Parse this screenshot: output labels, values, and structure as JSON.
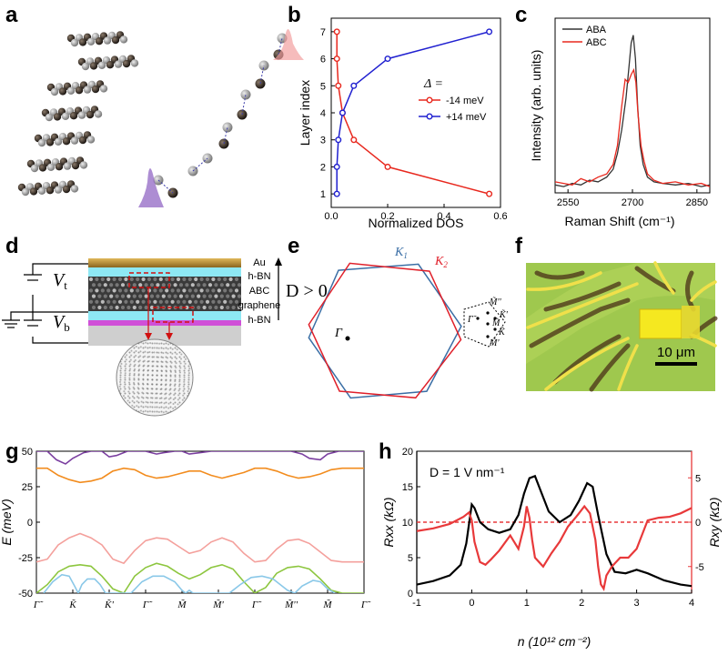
{
  "panels": {
    "a": "a",
    "b": "b",
    "c": "c",
    "d": "d",
    "e": "e",
    "f": "f",
    "g": "g",
    "h": "h"
  },
  "chart_data": [
    {
      "id": "b",
      "type": "line",
      "xlabel": "Normalized DOS",
      "ylabel": "Layer index",
      "legend_title": "Δ =",
      "xlim": [
        0,
        0.6
      ],
      "ylim": [
        0.5,
        7.5
      ],
      "xticks": [
        "0.0",
        "0.2",
        "0.4",
        "0.6"
      ],
      "yticks": [
        "1",
        "2",
        "3",
        "4",
        "5",
        "6",
        "7"
      ],
      "series": [
        {
          "name": "-14 meV",
          "color": "#e8281e",
          "x": [
            0.56,
            0.2,
            0.08,
            0.04,
            0.025,
            0.02,
            0.02
          ],
          "y": [
            1,
            2,
            3,
            4,
            5,
            6,
            7
          ]
        },
        {
          "name": "+14 meV",
          "color": "#2020d0",
          "x": [
            0.02,
            0.02,
            0.025,
            0.04,
            0.08,
            0.2,
            0.56
          ],
          "y": [
            1,
            2,
            3,
            4,
            5,
            6,
            7
          ]
        }
      ]
    },
    {
      "id": "c",
      "type": "line",
      "xlabel": "Raman Shift (cm⁻¹)",
      "ylabel": "Intensity (arb. units)",
      "xlim": [
        2520,
        2880
      ],
      "ylim": [
        0,
        1.05
      ],
      "xticks": [
        "2550",
        "2700",
        "2850"
      ],
      "series": [
        {
          "name": "ABA",
          "color": "#333333",
          "x": [
            2520,
            2540,
            2560,
            2580,
            2600,
            2620,
            2640,
            2655,
            2665,
            2675,
            2685,
            2692,
            2697,
            2702,
            2707,
            2712,
            2718,
            2725,
            2735,
            2750,
            2770,
            2800,
            2830,
            2860,
            2880
          ],
          "y": [
            0.05,
            0.04,
            0.06,
            0.05,
            0.08,
            0.07,
            0.1,
            0.15,
            0.25,
            0.4,
            0.6,
            0.8,
            0.95,
            1.0,
            0.85,
            0.55,
            0.3,
            0.18,
            0.1,
            0.07,
            0.06,
            0.05,
            0.06,
            0.04,
            0.05
          ]
        },
        {
          "name": "ABC",
          "color": "#e8281e",
          "x": [
            2520,
            2540,
            2560,
            2580,
            2600,
            2620,
            2640,
            2655,
            2665,
            2675,
            2683,
            2690,
            2697,
            2703,
            2708,
            2713,
            2720,
            2727,
            2735,
            2750,
            2770,
            2800,
            2830,
            2860,
            2880
          ],
          "y": [
            0.07,
            0.06,
            0.05,
            0.09,
            0.07,
            0.1,
            0.12,
            0.18,
            0.3,
            0.55,
            0.72,
            0.7,
            0.75,
            0.78,
            0.7,
            0.5,
            0.3,
            0.2,
            0.12,
            0.08,
            0.06,
            0.07,
            0.05,
            0.06,
            0.04
          ]
        }
      ]
    },
    {
      "id": "g",
      "type": "line",
      "ylabel": "E (meV)",
      "ylim": [
        -50,
        50
      ],
      "yticks": [
        "-50",
        "-25",
        "0",
        "25",
        "50"
      ],
      "xticks": [
        "Γ̃",
        "K̃",
        "K̃'",
        "Γ̃",
        "M̃",
        "M̃'",
        "Γ̃",
        "M̃''",
        "M̃",
        "Γ̃"
      ],
      "series": [
        {
          "name": "band+2",
          "color": "#7b3fa0",
          "x": [
            0,
            0.3,
            0.55,
            0.8,
            1,
            1.3,
            1.5,
            1.8,
            2,
            2.2,
            2.5,
            2.8,
            3,
            3.3,
            3.5,
            3.8,
            4,
            4.2,
            4.5,
            4.8,
            5,
            5.3,
            5.5,
            5.8,
            6,
            6.2,
            6.5,
            6.8,
            7,
            7.3,
            7.5,
            7.8,
            8,
            8.3,
            8.6,
            8.9,
            9
          ],
          "y": [
            50,
            50,
            44,
            41,
            45,
            49,
            50,
            50,
            46,
            47,
            50,
            50,
            50,
            48,
            49,
            50,
            50,
            48,
            49,
            50,
            50,
            50,
            50,
            50,
            50,
            50,
            50,
            50,
            50,
            48,
            45,
            44,
            48,
            50,
            50,
            50,
            50
          ]
        },
        {
          "name": "band+1",
          "color": "#f28c1e",
          "x": [
            0,
            0.3,
            0.6,
            0.9,
            1.2,
            1.5,
            1.8,
            2.1,
            2.4,
            2.7,
            3,
            3.3,
            3.6,
            3.9,
            4.2,
            4.5,
            4.8,
            5.1,
            5.4,
            5.7,
            6,
            6.3,
            6.6,
            6.9,
            7.2,
            7.5,
            7.8,
            8.1,
            8.4,
            8.7,
            9
          ],
          "y": [
            38,
            38,
            33,
            30,
            28,
            29,
            31,
            36,
            38,
            37,
            33,
            31,
            32,
            34,
            36,
            36,
            33,
            31,
            33,
            35,
            38,
            38,
            36,
            33,
            31,
            32,
            34,
            37,
            38,
            38,
            38
          ]
        },
        {
          "name": "band-1",
          "color": "#f4a09c",
          "x": [
            0,
            0.3,
            0.6,
            0.9,
            1.2,
            1.5,
            1.8,
            2.1,
            2.4,
            2.7,
            3,
            3.3,
            3.6,
            3.9,
            4.2,
            4.5,
            4.8,
            5.1,
            5.4,
            5.7,
            6,
            6.3,
            6.6,
            6.9,
            7.2,
            7.5,
            7.8,
            8.1,
            8.4,
            8.7,
            9
          ],
          "y": [
            -28,
            -26,
            -16,
            -11,
            -8,
            -11,
            -16,
            -26,
            -29,
            -20,
            -13,
            -11,
            -12,
            -17,
            -22,
            -20,
            -14,
            -11,
            -14,
            -22,
            -28,
            -27,
            -19,
            -13,
            -12,
            -15,
            -21,
            -27,
            -28,
            -28,
            -28
          ]
        },
        {
          "name": "band-2",
          "color": "#8dc63f",
          "x": [
            0,
            0.3,
            0.6,
            0.9,
            1.2,
            1.5,
            1.8,
            2.1,
            2.4,
            2.7,
            3,
            3.3,
            3.6,
            3.9,
            4.2,
            4.5,
            4.8,
            5.1,
            5.4,
            5.7,
            6,
            6.3,
            6.6,
            6.9,
            7.2,
            7.5,
            7.8,
            8.1,
            8.4,
            8.7,
            9
          ],
          "y": [
            -50,
            -44,
            -35,
            -31,
            -30,
            -31,
            -38,
            -47,
            -50,
            -38,
            -32,
            -29,
            -31,
            -36,
            -40,
            -37,
            -32,
            -30,
            -33,
            -42,
            -50,
            -46,
            -36,
            -32,
            -31,
            -33,
            -40,
            -48,
            -50,
            -50,
            -50
          ]
        },
        {
          "name": "band-3",
          "color": "#8ac8e8",
          "x": [
            0.2,
            0.45,
            0.7,
            0.9,
            1.05,
            1.15,
            1.25,
            1.4,
            1.6,
            1.75,
            1.9,
            2.0,
            2.6,
            2.9,
            3.2,
            3.5,
            3.8,
            4.0,
            4.1,
            4.2,
            4.3,
            5.3,
            5.6,
            5.9,
            6.2,
            6.5,
            6.7,
            6.9,
            7.1,
            7.3,
            7.6,
            7.8,
            8.0,
            8.2
          ],
          "y": [
            -50,
            -42,
            -37,
            -38,
            -45,
            -50,
            -44,
            -40,
            -40,
            -44,
            -50,
            -50,
            -50,
            -42,
            -38,
            -38,
            -42,
            -48,
            -50,
            -48,
            -50,
            -50,
            -44,
            -39,
            -38,
            -40,
            -44,
            -48,
            -50,
            -45,
            -41,
            -42,
            -47,
            -50
          ]
        }
      ]
    },
    {
      "id": "h",
      "type": "line",
      "title": "D = 1 V nm⁻¹",
      "xlabel": "n (10¹² cm⁻²)",
      "ylabel_left": "Rxx (kΩ)",
      "ylabel_right": "Rxy (kΩ)",
      "xlim": [
        -1,
        4
      ],
      "ylim_left": [
        0,
        20
      ],
      "ylim_right": [
        -8,
        8
      ],
      "xticks": [
        "-1",
        "0",
        "1",
        "2",
        "3",
        "4"
      ],
      "yticks_left": [
        "0",
        "5",
        "10",
        "15",
        "20"
      ],
      "yticks_right": [
        "-5",
        "0",
        "5"
      ],
      "series": [
        {
          "name": "Rxx",
          "axis": "left",
          "color": "#000000",
          "x": [
            -1,
            -0.7,
            -0.4,
            -0.2,
            -0.1,
            0,
            0.05,
            0.15,
            0.3,
            0.5,
            0.7,
            0.85,
            0.95,
            1.05,
            1.15,
            1.25,
            1.4,
            1.6,
            1.8,
            1.95,
            2.1,
            2.2,
            2.3,
            2.45,
            2.6,
            2.8,
            3.0,
            3.2,
            3.5,
            3.8,
            4.0
          ],
          "y": [
            1.2,
            1.7,
            2.5,
            4,
            7,
            12.5,
            12,
            10,
            9,
            8.5,
            9,
            11,
            14,
            16.2,
            16.5,
            14.5,
            11.5,
            10,
            11,
            13,
            15.5,
            15,
            11,
            5.5,
            3,
            2.8,
            3.3,
            2.8,
            1.8,
            1.2,
            1
          ]
        },
        {
          "name": "Rxy",
          "axis": "right",
          "color": "#e8393a",
          "x": [
            -1,
            -0.7,
            -0.4,
            -0.15,
            -0.05,
            0,
            0.05,
            0.15,
            0.25,
            0.35,
            0.5,
            0.7,
            0.85,
            0.95,
            1.0,
            1.05,
            1.1,
            1.15,
            1.3,
            1.45,
            1.6,
            1.75,
            1.9,
            2.05,
            2.15,
            2.25,
            2.3,
            2.35,
            2.4,
            2.45,
            2.55,
            2.7,
            2.85,
            3.0,
            3.2,
            3.4,
            3.6,
            3.8,
            4.0
          ],
          "y": [
            -1,
            -0.7,
            -0.2,
            0.6,
            1.1,
            0.2,
            -2.2,
            -4.5,
            -4.8,
            -4.2,
            -3.2,
            -1.5,
            -3,
            -0.5,
            1.8,
            0.5,
            -2,
            -4,
            -5,
            -3.5,
            -2.2,
            -0.5,
            0.6,
            1.8,
            1,
            -2,
            -5,
            -7,
            -7.5,
            -6,
            -5,
            -4,
            -4,
            -3,
            0.2,
            0.5,
            0.6,
            1.0,
            1.6
          ]
        }
      ]
    }
  ],
  "panel_c_legend": [
    "ABA",
    "ABC"
  ],
  "panel_d": {
    "v_top": "V",
    "v_top_sub": "t",
    "v_bot": "V",
    "v_bot_sub": "b",
    "layers": [
      "Au",
      "h-BN",
      "ABC",
      "graphene",
      "h-BN"
    ],
    "field": "D > 0"
  },
  "panel_e": {
    "k1": "K",
    "k1_sub": "1",
    "k2": "K",
    "k2_sub": "2",
    "gamma": "Γ",
    "labels": [
      "M̃''",
      "K̃'",
      "M̃",
      "K̃",
      "M̃'",
      "Γ̃"
    ]
  },
  "panel_f": {
    "scale": "10 μm"
  },
  "panel_h_zero": "0"
}
